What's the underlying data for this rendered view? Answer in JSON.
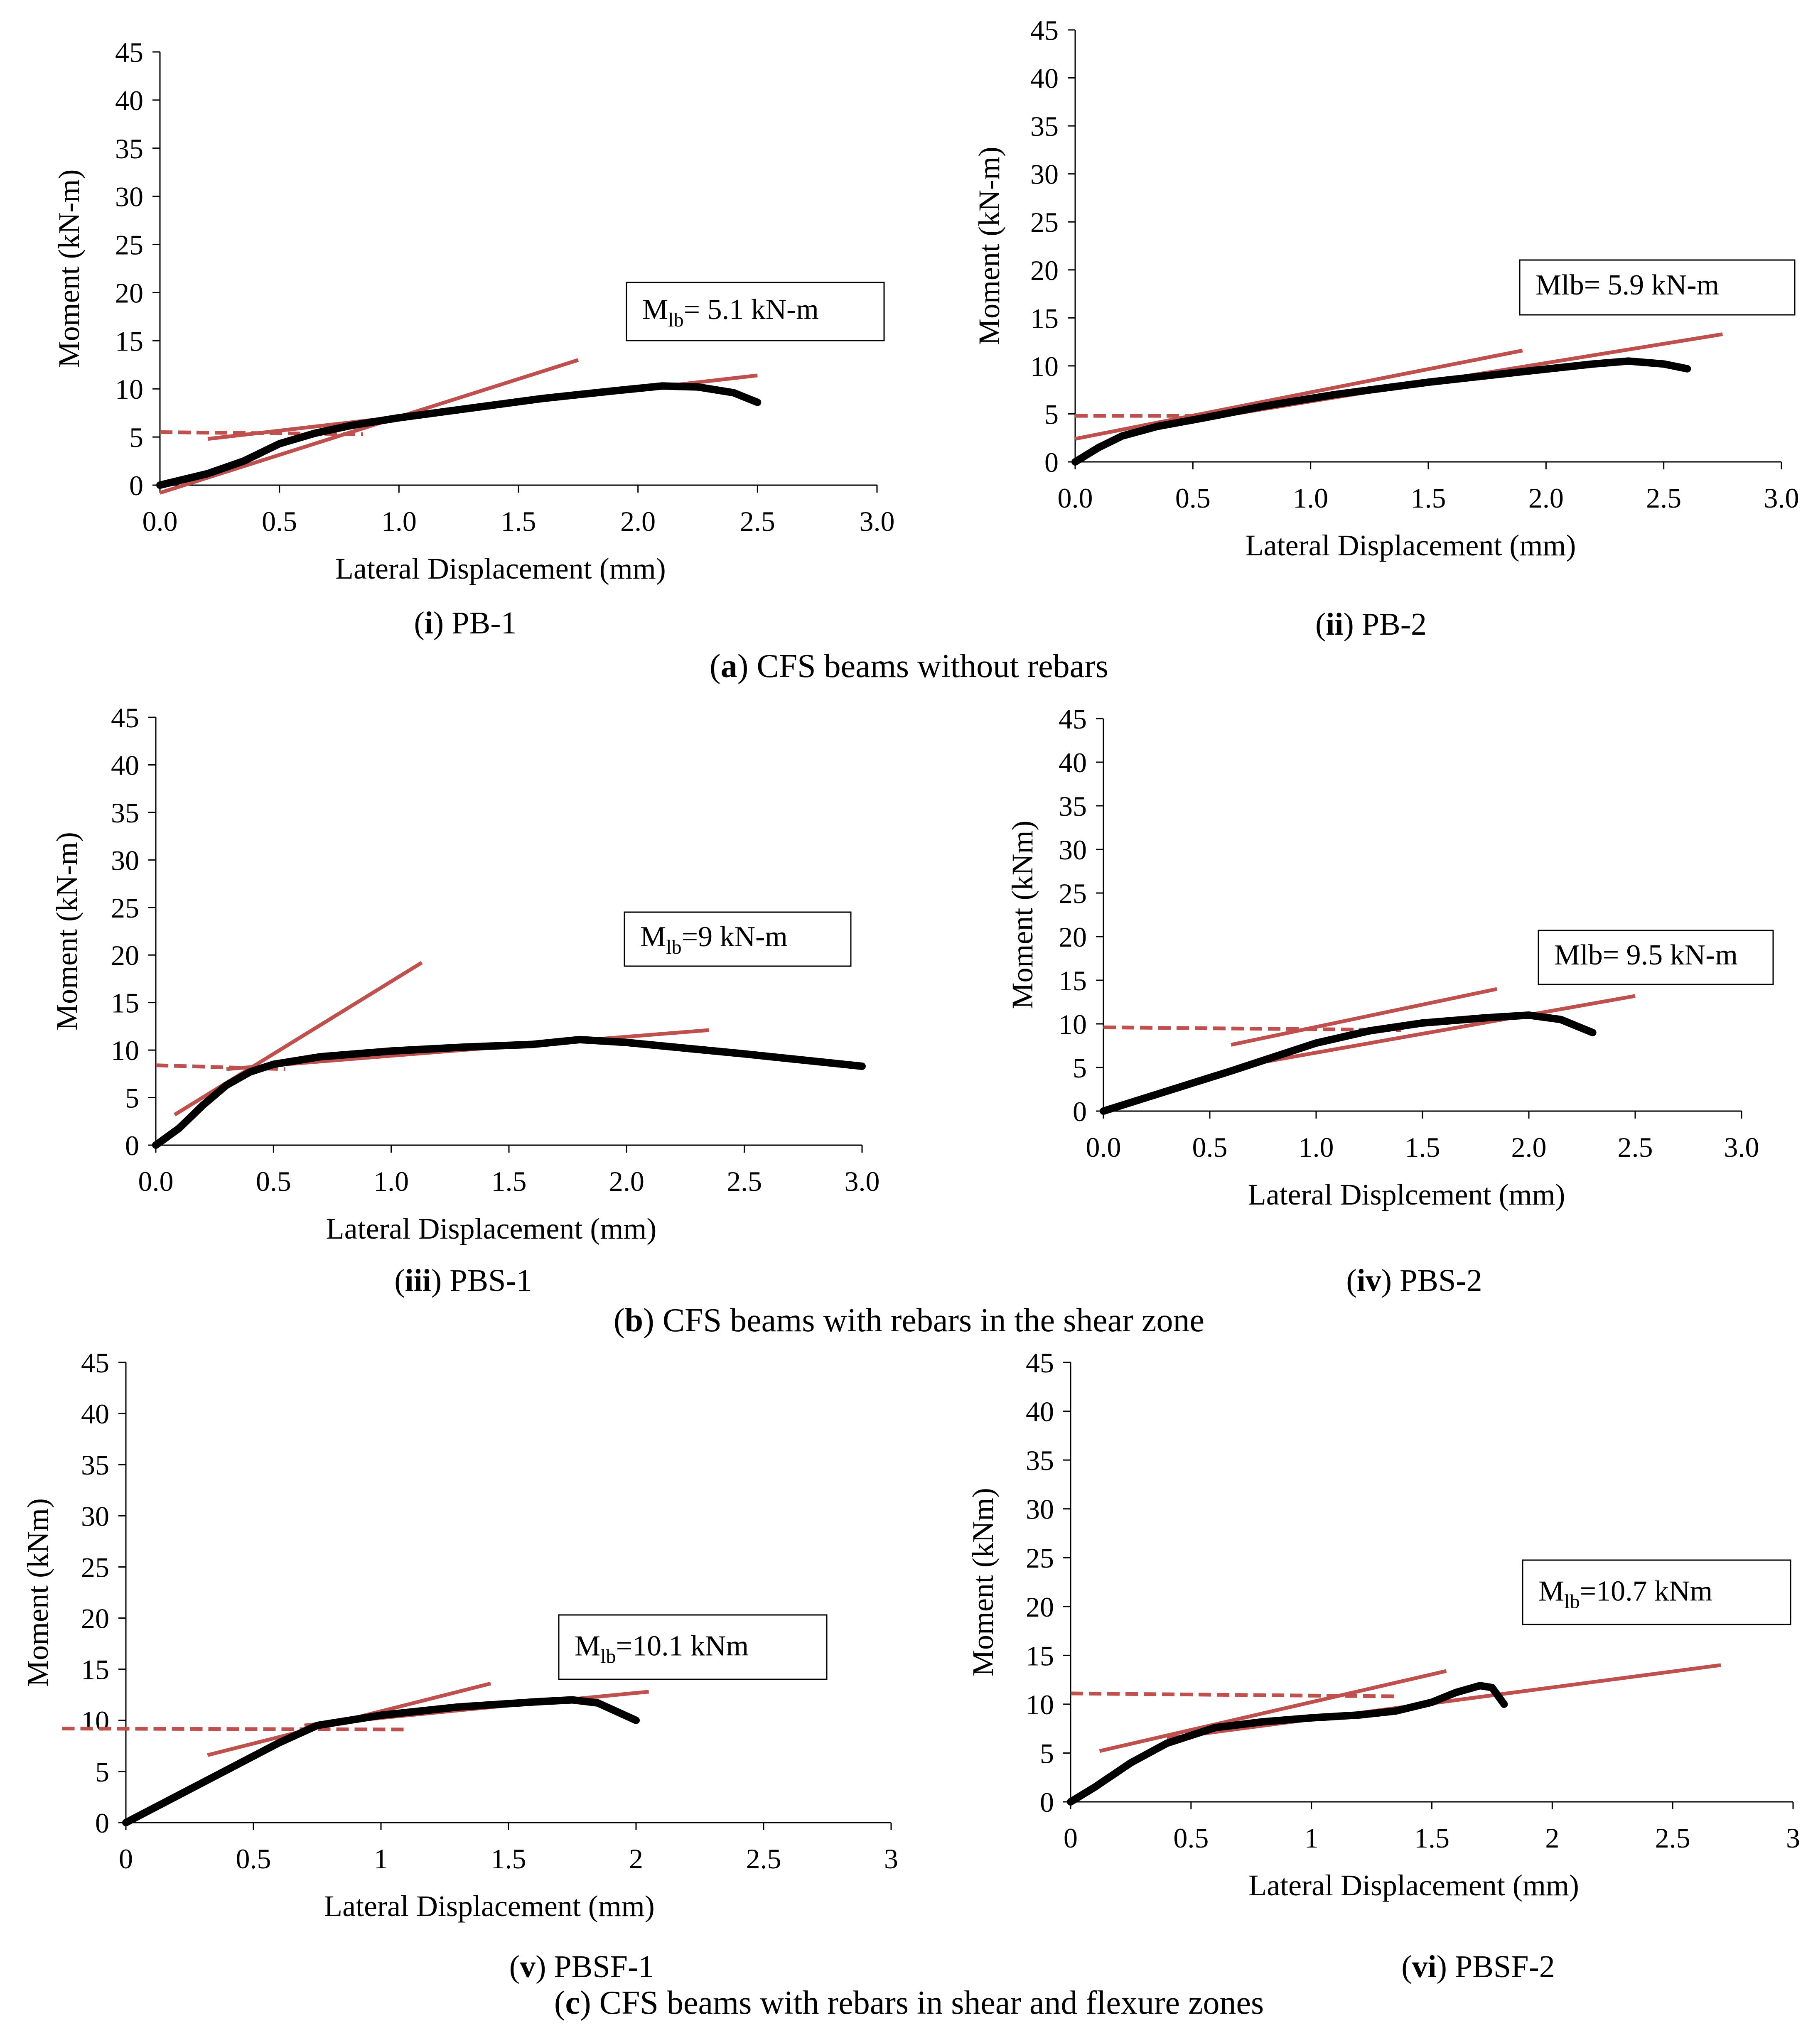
{
  "groups": [
    {
      "letter": "a",
      "text": " CFS beams without rebars"
    },
    {
      "letter": "b",
      "text": " CFS beams with rebars in the shear zone"
    },
    {
      "letter": "c",
      "text": " CFS beams with rebars in shear and flexure zones"
    }
  ],
  "colors": {
    "test_curve": "#000000",
    "fit_lines": "#c0504d"
  },
  "chart_data": [
    {
      "type": "line",
      "panel_number": "i",
      "panel_name": " PB-1",
      "xlabel": "Lateral Displacement (mm)",
      "ylabel": "Moment (kN-m)",
      "xlim": [
        0,
        3
      ],
      "ylim": [
        0,
        45
      ],
      "xticks": [
        "0.0",
        "0.5",
        "1.0",
        "1.5",
        "2.0",
        "2.5",
        "3.0"
      ],
      "yticks": [
        "0",
        "5",
        "10",
        "15",
        "20",
        "25",
        "30",
        "35",
        "40",
        "45"
      ],
      "annotation": {
        "prefix": "M",
        "sub": "lb",
        "suffix": "= 5.1 kN-m"
      },
      "curve": [
        [
          0,
          0
        ],
        [
          0.2,
          1.2
        ],
        [
          0.35,
          2.5
        ],
        [
          0.5,
          4.3
        ],
        [
          0.65,
          5.4
        ],
        [
          0.8,
          6.2
        ],
        [
          1.0,
          7.0
        ],
        [
          1.3,
          8.0
        ],
        [
          1.6,
          9.0
        ],
        [
          1.9,
          9.8
        ],
        [
          2.1,
          10.3
        ],
        [
          2.25,
          10.2
        ],
        [
          2.4,
          9.6
        ],
        [
          2.5,
          8.6
        ]
      ],
      "fit_lines": [
        {
          "style": "solid",
          "points": [
            [
              0,
              -0.8
            ],
            [
              1.75,
              13
            ]
          ]
        },
        {
          "style": "solid",
          "points": [
            [
              0.2,
              4.8
            ],
            [
              2.5,
              11.4
            ]
          ]
        },
        {
          "style": "dashed",
          "points": [
            [
              0,
              5.5
            ],
            [
              0.85,
              5.3
            ]
          ]
        }
      ]
    },
    {
      "type": "line",
      "panel_number": "ii",
      "panel_name": " PB-2",
      "xlabel": "Lateral Displacement (mm)",
      "ylabel": "Moment (kN-m)",
      "xlim": [
        0,
        3
      ],
      "ylim": [
        0,
        45
      ],
      "xticks": [
        "0.0",
        "0.5",
        "1.0",
        "1.5",
        "2.0",
        "2.5",
        "3.0"
      ],
      "yticks": [
        "0",
        "5",
        "10",
        "15",
        "20",
        "25",
        "30",
        "35",
        "40",
        "45"
      ],
      "annotation": {
        "prefix": "Mlb= 5.9 kN-m",
        "sub": "",
        "suffix": ""
      },
      "curve": [
        [
          0,
          0
        ],
        [
          0.1,
          1.5
        ],
        [
          0.2,
          2.7
        ],
        [
          0.35,
          3.7
        ],
        [
          0.55,
          4.6
        ],
        [
          0.8,
          5.8
        ],
        [
          1.1,
          7.0
        ],
        [
          1.5,
          8.3
        ],
        [
          1.9,
          9.4
        ],
        [
          2.2,
          10.2
        ],
        [
          2.35,
          10.5
        ],
        [
          2.5,
          10.2
        ],
        [
          2.6,
          9.7
        ]
      ],
      "fit_lines": [
        {
          "style": "solid",
          "points": [
            [
              0,
              2.4
            ],
            [
              1.9,
              11.6
            ]
          ]
        },
        {
          "style": "solid",
          "points": [
            [
              0.3,
              3.5
            ],
            [
              2.75,
              13.3
            ]
          ]
        },
        {
          "style": "dashed",
          "points": [
            [
              0,
              4.8
            ],
            [
              0.55,
              4.8
            ]
          ]
        }
      ]
    },
    {
      "type": "line",
      "panel_number": "iii",
      "panel_name": " PBS-1",
      "xlabel": "Lateral Displacement (mm)",
      "ylabel": "Moment (kN-m)",
      "xlim": [
        0,
        3
      ],
      "ylim": [
        0,
        45
      ],
      "xticks": [
        "0.0",
        "0.5",
        "1.0",
        "1.5",
        "2.0",
        "2.5",
        "3.0"
      ],
      "yticks": [
        "0",
        "5",
        "10",
        "15",
        "20",
        "25",
        "30",
        "35",
        "40",
        "45"
      ],
      "annotation": {
        "prefix": "M",
        "sub": "lb",
        "suffix": "=9 kN-m"
      },
      "curve": [
        [
          0,
          0
        ],
        [
          0.1,
          1.8
        ],
        [
          0.2,
          4.2
        ],
        [
          0.3,
          6.3
        ],
        [
          0.4,
          7.7
        ],
        [
          0.5,
          8.5
        ],
        [
          0.7,
          9.3
        ],
        [
          1.0,
          9.9
        ],
        [
          1.3,
          10.3
        ],
        [
          1.6,
          10.6
        ],
        [
          1.8,
          11.1
        ],
        [
          2.0,
          10.8
        ],
        [
          2.5,
          9.6
        ],
        [
          3.0,
          8.3
        ]
      ],
      "fit_lines": [
        {
          "style": "solid",
          "points": [
            [
              0.08,
              3.2
            ],
            [
              1.13,
              19.2
            ]
          ]
        },
        {
          "style": "solid",
          "points": [
            [
              0.3,
              8.0
            ],
            [
              2.35,
              12.1
            ]
          ]
        },
        {
          "style": "dashed",
          "points": [
            [
              0,
              8.4
            ],
            [
              0.55,
              8.0
            ]
          ]
        }
      ]
    },
    {
      "type": "line",
      "panel_number": "iv",
      "panel_name": " PBS-2",
      "xlabel": "Lateral Displcement (mm)",
      "ylabel": "Moment (kNm)",
      "xlim": [
        0,
        3
      ],
      "ylim": [
        0,
        45
      ],
      "xticks": [
        "0.0",
        "0.5",
        "1.0",
        "1.5",
        "2.0",
        "2.5",
        "3.0"
      ],
      "yticks": [
        "0",
        "5",
        "10",
        "15",
        "20",
        "25",
        "30",
        "35",
        "40",
        "45"
      ],
      "annotation": {
        "prefix": "Mlb= 9.5 kN-m",
        "sub": "",
        "suffix": ""
      },
      "curve": [
        [
          0,
          0
        ],
        [
          0.3,
          2.3
        ],
        [
          0.6,
          4.6
        ],
        [
          0.8,
          6.2
        ],
        [
          1.0,
          7.8
        ],
        [
          1.25,
          9.2
        ],
        [
          1.5,
          10.1
        ],
        [
          1.8,
          10.7
        ],
        [
          2.0,
          11.0
        ],
        [
          2.15,
          10.5
        ],
        [
          2.3,
          9.0
        ]
      ],
      "fit_lines": [
        {
          "style": "solid",
          "points": [
            [
              0.6,
              7.6
            ],
            [
              1.85,
              14
            ]
          ]
        },
        {
          "style": "solid",
          "points": [
            [
              0.7,
              5.4
            ],
            [
              2.5,
              13.2
            ]
          ]
        },
        {
          "style": "dashed",
          "points": [
            [
              0,
              9.6
            ],
            [
              1.4,
              9.3
            ]
          ]
        }
      ]
    },
    {
      "type": "line",
      "panel_number": "v",
      "panel_name": " PBSF-1",
      "xlabel": "Lateral Displacement (mm)",
      "ylabel": "Moment (kNm)",
      "xlim": [
        0,
        3
      ],
      "ylim": [
        0,
        45
      ],
      "xticks": [
        "0",
        "0.5",
        "1",
        "1.5",
        "2",
        "2.5",
        "3"
      ],
      "yticks": [
        "0",
        "5",
        "10",
        "15",
        "20",
        "25",
        "30",
        "35",
        "40",
        "45"
      ],
      "annotation": {
        "prefix": "M",
        "sub": "lb",
        "suffix": "=10.1 kNm"
      },
      "curve": [
        [
          0,
          0
        ],
        [
          0.2,
          2.6
        ],
        [
          0.4,
          5.2
        ],
        [
          0.6,
          7.8
        ],
        [
          0.75,
          9.5
        ],
        [
          1.0,
          10.5
        ],
        [
          1.3,
          11.3
        ],
        [
          1.6,
          11.8
        ],
        [
          1.75,
          12.0
        ],
        [
          1.85,
          11.7
        ],
        [
          2.0,
          10.0
        ]
      ],
      "fit_lines": [
        {
          "style": "solid",
          "points": [
            [
              0.32,
              6.6
            ],
            [
              1.43,
              13.6
            ]
          ]
        },
        {
          "style": "solid",
          "points": [
            [
              0.7,
              9.5
            ],
            [
              2.05,
              12.8
            ]
          ]
        },
        {
          "style": "dashed",
          "points": [
            [
              -0.25,
              9.2
            ],
            [
              1.1,
              9.1
            ]
          ]
        }
      ]
    },
    {
      "type": "line",
      "panel_number": "vi",
      "panel_name": " PBSF-2",
      "xlabel": "Lateral Displacement (mm)",
      "ylabel": "Moment (kNm)",
      "xlim": [
        0,
        3
      ],
      "ylim": [
        0,
        45
      ],
      "xticks": [
        "0",
        "0.5",
        "1",
        "1.5",
        "2",
        "2.5",
        "3"
      ],
      "yticks": [
        "0",
        "5",
        "10",
        "15",
        "20",
        "25",
        "30",
        "35",
        "40",
        "45"
      ],
      "annotation": {
        "prefix": "M",
        "sub": "lb",
        "suffix": "=10.7 kNm"
      },
      "curve": [
        [
          0,
          0
        ],
        [
          0.1,
          1.5
        ],
        [
          0.25,
          4.0
        ],
        [
          0.4,
          6.0
        ],
        [
          0.6,
          7.6
        ],
        [
          0.8,
          8.2
        ],
        [
          1.0,
          8.6
        ],
        [
          1.2,
          8.9
        ],
        [
          1.35,
          9.3
        ],
        [
          1.5,
          10.2
        ],
        [
          1.6,
          11.2
        ],
        [
          1.7,
          11.9
        ],
        [
          1.75,
          11.7
        ],
        [
          1.8,
          10.0
        ]
      ],
      "fit_lines": [
        {
          "style": "solid",
          "points": [
            [
              0.12,
              5.2
            ],
            [
              1.56,
              13.4
            ]
          ]
        },
        {
          "style": "solid",
          "points": [
            [
              0.4,
              6.5
            ],
            [
              2.7,
              14.0
            ]
          ]
        },
        {
          "style": "dashed",
          "points": [
            [
              0,
              11.1
            ],
            [
              1.35,
              10.8
            ]
          ]
        }
      ]
    }
  ]
}
